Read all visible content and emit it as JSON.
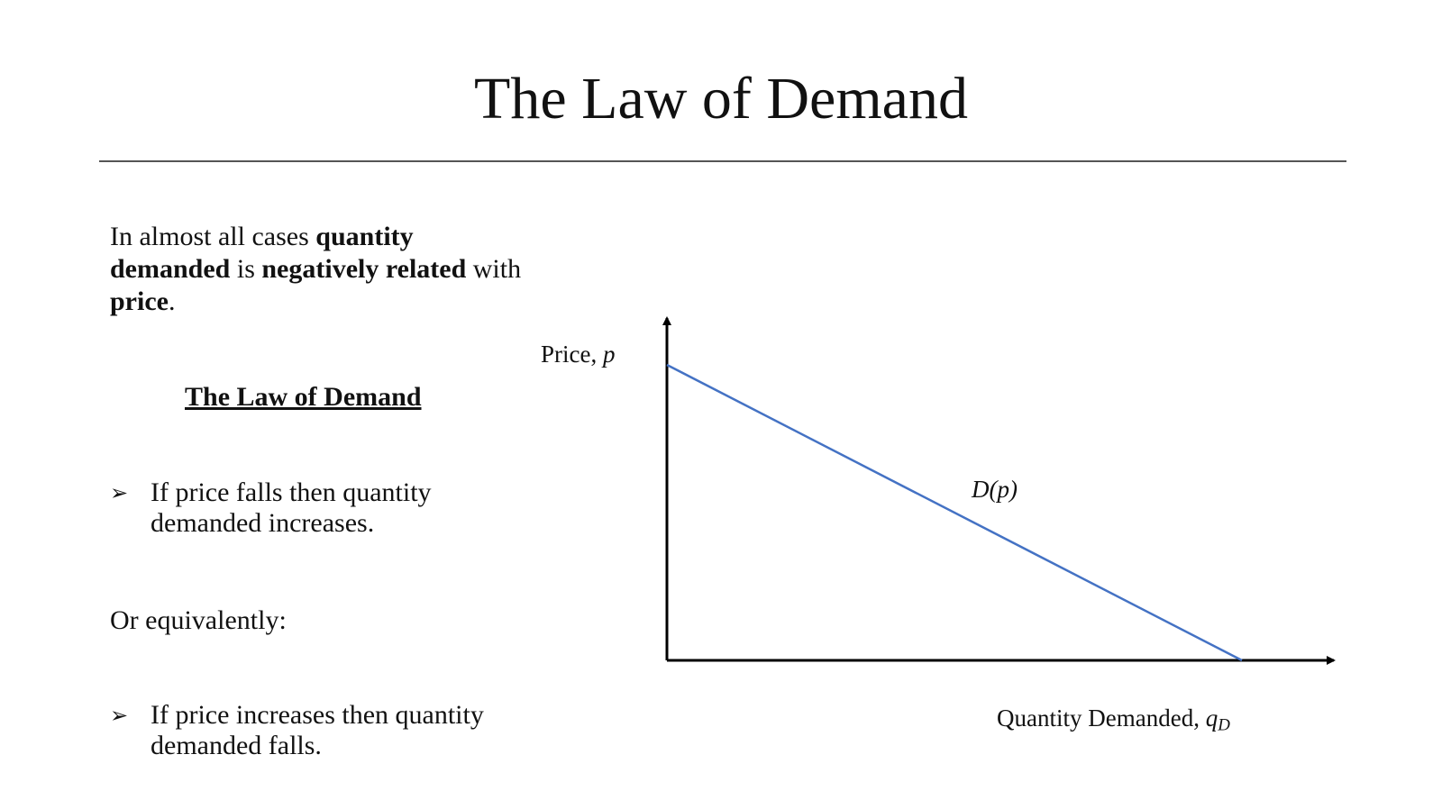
{
  "slide": {
    "title": "The Law of Demand"
  },
  "intro": {
    "t1": "In almost all cases ",
    "b1": "quantity demanded",
    "t2": " is ",
    "b2": "negatively related",
    "t3": " with ",
    "b3": "price",
    "t4": "."
  },
  "law_heading": "The Law of Demand",
  "bullets": [
    {
      "marker": "➢",
      "text": "If price falls then quantity demanded increases."
    },
    {
      "marker": "➢",
      "text": "If price increases then quantity demanded falls."
    }
  ],
  "equivalently": "Or equivalently:",
  "diagram": {
    "y_axis_label": "Price, ",
    "y_axis_symbol": "p",
    "x_axis_label": "Quantity Demanded, ",
    "x_axis_symbol": "q",
    "x_axis_subscript": "D",
    "curve_label": "D(p)",
    "curve_color": "#4472C4",
    "axis_color": "#000000"
  }
}
